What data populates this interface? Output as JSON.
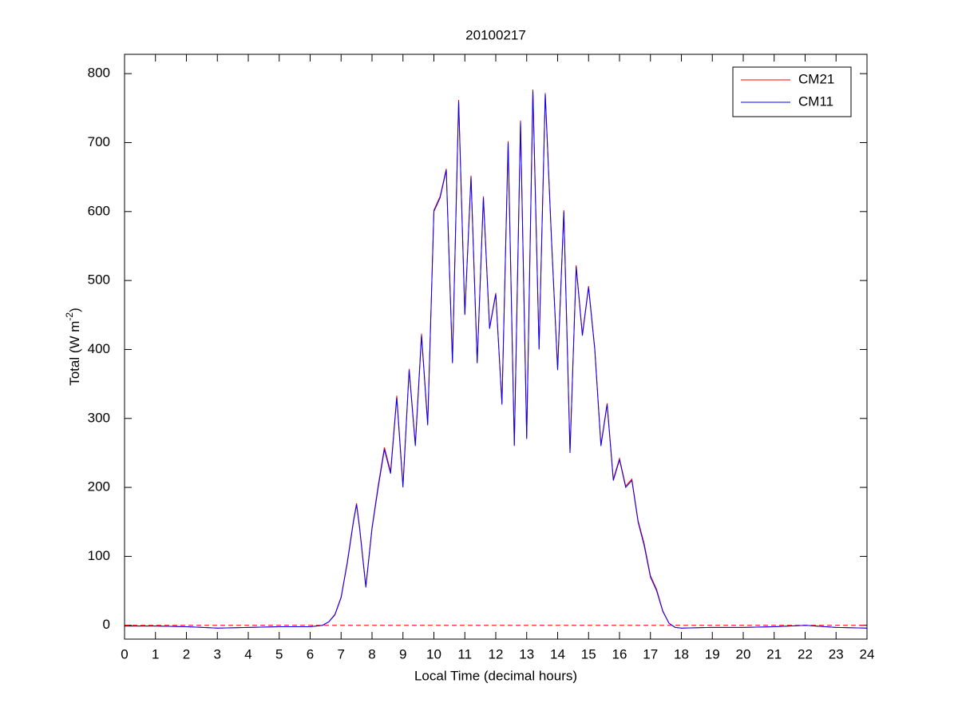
{
  "chart_data": {
    "type": "line",
    "title": "20100217",
    "xlabel": "Local Time (decimal hours)",
    "ylabel": [
      "Total (W m",
      "-2",
      ")"
    ],
    "x": [
      0,
      1,
      2,
      3,
      4,
      5,
      6,
      6.4,
      6.6,
      6.8,
      7.0,
      7.2,
      7.4,
      7.5,
      7.6,
      7.8,
      8.0,
      8.2,
      8.4,
      8.6,
      8.8,
      9.0,
      9.2,
      9.4,
      9.6,
      9.8,
      10.0,
      10.2,
      10.4,
      10.6,
      10.8,
      11.0,
      11.2,
      11.4,
      11.6,
      11.8,
      12.0,
      12.2,
      12.4,
      12.6,
      12.8,
      13.0,
      13.2,
      13.4,
      13.6,
      13.8,
      14.0,
      14.2,
      14.4,
      14.6,
      14.8,
      15.0,
      15.2,
      15.4,
      15.6,
      15.8,
      16.0,
      16.2,
      16.4,
      16.6,
      16.8,
      17.0,
      17.2,
      17.4,
      17.6,
      17.8,
      18.0,
      19,
      20,
      21,
      22,
      23,
      24
    ],
    "series": [
      {
        "name": "CM21",
        "color": "#ff0000",
        "values": [
          -1,
          -1,
          -2,
          -4,
          -3,
          -2,
          -2,
          0,
          5,
          16,
          41,
          92,
          152,
          177,
          142,
          57,
          142,
          203,
          258,
          223,
          333,
          203,
          372,
          263,
          423,
          293,
          602,
          622,
          662,
          382,
          762,
          452,
          652,
          382,
          622,
          432,
          482,
          322,
          702,
          262,
          732,
          272,
          777,
          402,
          772,
          562,
          372,
          602,
          252,
          522,
          422,
          492,
          402,
          262,
          322,
          212,
          242,
          202,
          212,
          152,
          118,
          72,
          52,
          21,
          3,
          -3,
          -4,
          -3,
          -3,
          -2,
          0,
          -3,
          -4
        ]
      },
      {
        "name": "CM11",
        "color": "#0000ff",
        "values": [
          -1,
          -1,
          -2,
          -4,
          -3,
          -2,
          -2,
          0,
          5,
          15,
          40,
          90,
          150,
          175,
          140,
          55,
          140,
          200,
          255,
          220,
          330,
          200,
          370,
          260,
          420,
          290,
          600,
          620,
          660,
          380,
          760,
          450,
          650,
          380,
          620,
          430,
          480,
          320,
          700,
          260,
          730,
          270,
          775,
          400,
          770,
          560,
          370,
          600,
          250,
          520,
          420,
          490,
          400,
          260,
          320,
          210,
          240,
          200,
          210,
          150,
          115,
          70,
          50,
          20,
          3,
          -3,
          -4,
          -3,
          -3,
          -2,
          0,
          -3,
          -4
        ]
      }
    ],
    "reference_line": {
      "value": 0,
      "color": "#ff0000",
      "style": "dashed"
    },
    "xlim": [
      0,
      24
    ],
    "xticks": [
      0,
      1,
      2,
      3,
      4,
      5,
      6,
      7,
      8,
      9,
      10,
      11,
      12,
      13,
      14,
      15,
      16,
      17,
      18,
      19,
      20,
      21,
      22,
      23,
      24
    ],
    "ylim": [
      -20,
      828
    ],
    "yticks": [
      0,
      100,
      200,
      300,
      400,
      500,
      600,
      700,
      800
    ],
    "grid": false,
    "legend": "upper-right"
  }
}
